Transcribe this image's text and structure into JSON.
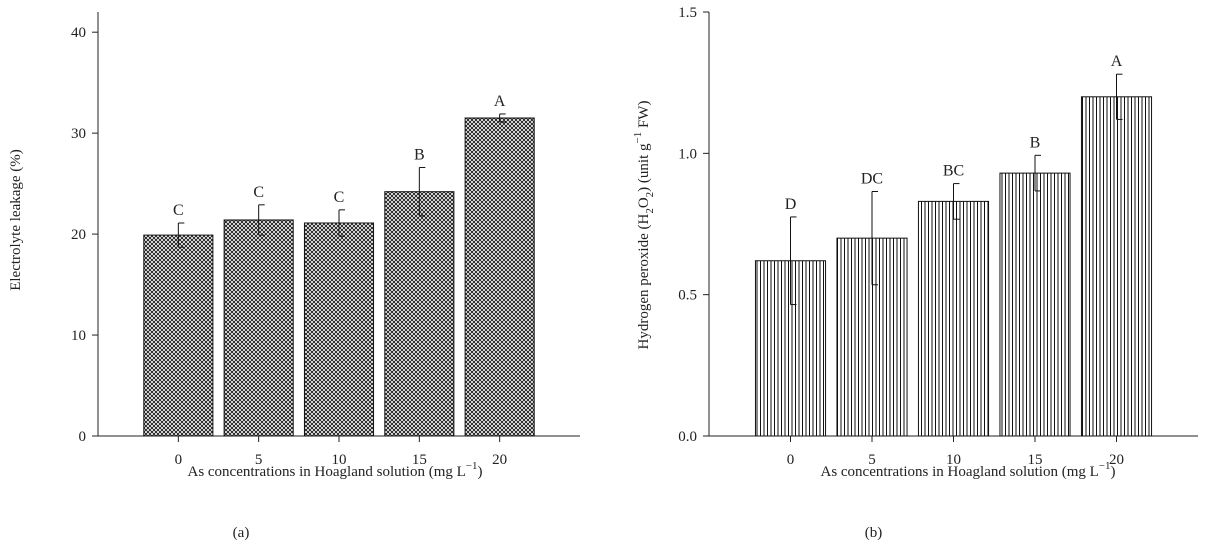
{
  "chart_data": [
    {
      "type": "bar",
      "panel_label": "(a)",
      "categories": [
        "0",
        "5",
        "10",
        "15",
        "20"
      ],
      "values": [
        19.9,
        21.4,
        21.1,
        24.2,
        31.5
      ],
      "error": [
        1.2,
        1.5,
        1.3,
        2.4,
        0.4
      ],
      "group_letters": [
        "C",
        "C",
        "C",
        "B",
        "A"
      ],
      "xlabel": "As concentrations in Hoagland solution (mg L",
      "xlabel_sup": "−1",
      "xlabel_end": ")",
      "ylabel": "Electrolyte leakage (%)",
      "ylim": [
        0,
        42
      ],
      "yticks": [
        0,
        10,
        20,
        30,
        40
      ],
      "ytick_labels": [
        "0",
        "10",
        "20",
        "30",
        "40"
      ],
      "bar_pattern": "crosshatch",
      "grid": false
    },
    {
      "type": "bar",
      "panel_label": "(b)",
      "categories": [
        "0",
        "5",
        "10",
        "15",
        "20"
      ],
      "values": [
        0.62,
        0.7,
        0.83,
        0.93,
        1.2
      ],
      "error": [
        0.155,
        0.165,
        0.063,
        0.063,
        0.08
      ],
      "group_letters": [
        "D",
        "DC",
        "BC",
        "B",
        "A"
      ],
      "xlabel": "As concentrations in Hoagland solution (mg L",
      "xlabel_sup": "−1",
      "xlabel_end": ")",
      "ylabel_parts": [
        "Hydrogen peroxide (H",
        "2",
        "O",
        "2",
        ") (unit g",
        "−1",
        " FW)"
      ],
      "ylim": [
        0,
        1.5
      ],
      "yticks": [
        0,
        0.5,
        1.0,
        1.5
      ],
      "ytick_labels": [
        "0.0",
        "0.5",
        "1.0",
        "1.5"
      ],
      "bar_pattern": "vertical-lines",
      "grid": false
    }
  ]
}
